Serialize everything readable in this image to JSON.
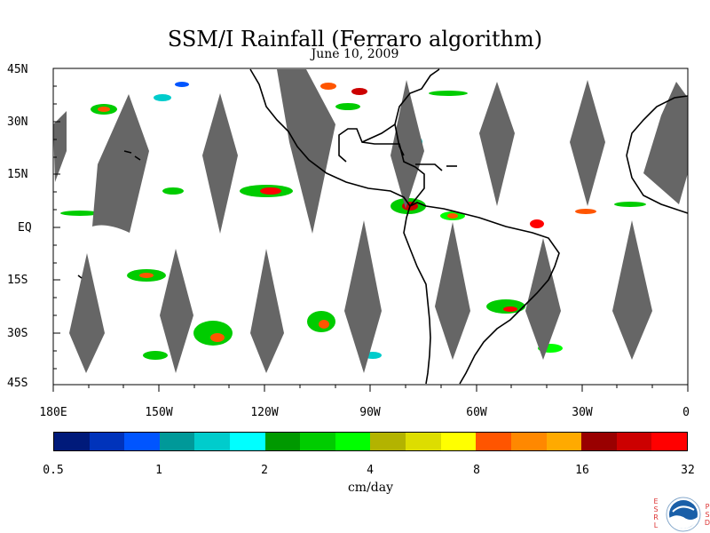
{
  "title": "SSM/I Rainfall (Ferraro algorithm)",
  "date": "June 10, 2009",
  "lat_labels": [
    "45N",
    "30N",
    "15N",
    "EQ",
    "15S",
    "30S",
    "45S"
  ],
  "lon_labels": [
    "180E",
    "150W",
    "120W",
    "90W",
    "60W",
    "30W",
    "0"
  ],
  "colorbar": {
    "units": "cm/day",
    "tick_labels": [
      "0.5",
      "1",
      "2",
      "4",
      "8",
      "16",
      "32"
    ],
    "colors": [
      "#001a7a",
      "#0033bb",
      "#0055ff",
      "#009999",
      "#00cccc",
      "#00ffff",
      "#009900",
      "#00cc00",
      "#00ff00",
      "#b3b300",
      "#dddd00",
      "#ffff00",
      "#ff5500",
      "#ff8800",
      "#ffaa00",
      "#990000",
      "#cc0000",
      "#ff0000"
    ]
  },
  "colors": {
    "swath_gap": "#666666",
    "coastline": "#000000"
  },
  "logo": {
    "left_letters": [
      "E",
      "S",
      "R",
      "L"
    ],
    "right_letters": [
      "P",
      "S",
      "D"
    ],
    "name": "NOAA"
  }
}
